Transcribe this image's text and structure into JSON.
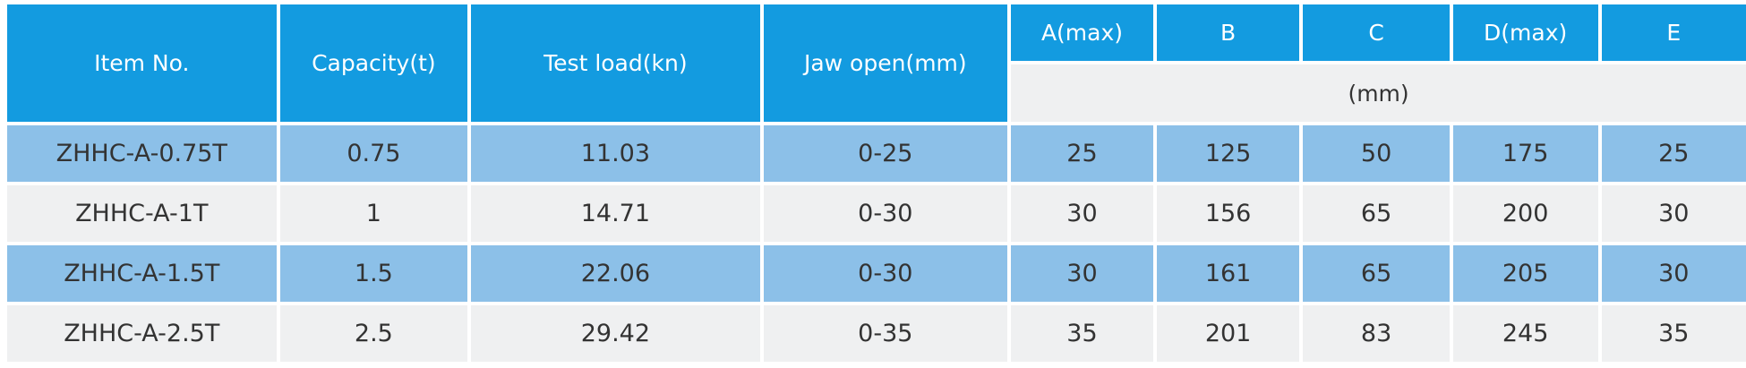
{
  "table": {
    "headers": {
      "item_no": "Item No.",
      "capacity": "Capacity(t)",
      "test_load": "Test load(kn)",
      "jaw_open": "Jaw open(mm)",
      "a": "A(max)",
      "b": "B",
      "c": "C",
      "d": "D(max)",
      "e": "E",
      "dims_unit": "(mm)"
    },
    "rows": [
      {
        "item_no": "ZHHC-A-0.75T",
        "capacity": "0.75",
        "test_load": "11.03",
        "jaw_open": "0-25",
        "a": "25",
        "b": "125",
        "c": "50",
        "d": "175",
        "e": "25"
      },
      {
        "item_no": "ZHHC-A-1T",
        "capacity": "1",
        "test_load": "14.71",
        "jaw_open": "0-30",
        "a": "30",
        "b": "156",
        "c": "65",
        "d": "200",
        "e": "30"
      },
      {
        "item_no": "ZHHC-A-1.5T",
        "capacity": "1.5",
        "test_load": "22.06",
        "jaw_open": "0-30",
        "a": "30",
        "b": "161",
        "c": "65",
        "d": "205",
        "e": "30"
      },
      {
        "item_no": "ZHHC-A-2.5T",
        "capacity": "2.5",
        "test_load": "29.42",
        "jaw_open": "0-35",
        "a": "35",
        "b": "201",
        "c": "83",
        "d": "245",
        "e": "35"
      }
    ],
    "colors": {
      "header_bg": "#139be0",
      "header_text": "#ffffff",
      "row_blue": "#8cc0e8",
      "row_grey": "#eff0f1",
      "body_text": "#333333"
    }
  }
}
